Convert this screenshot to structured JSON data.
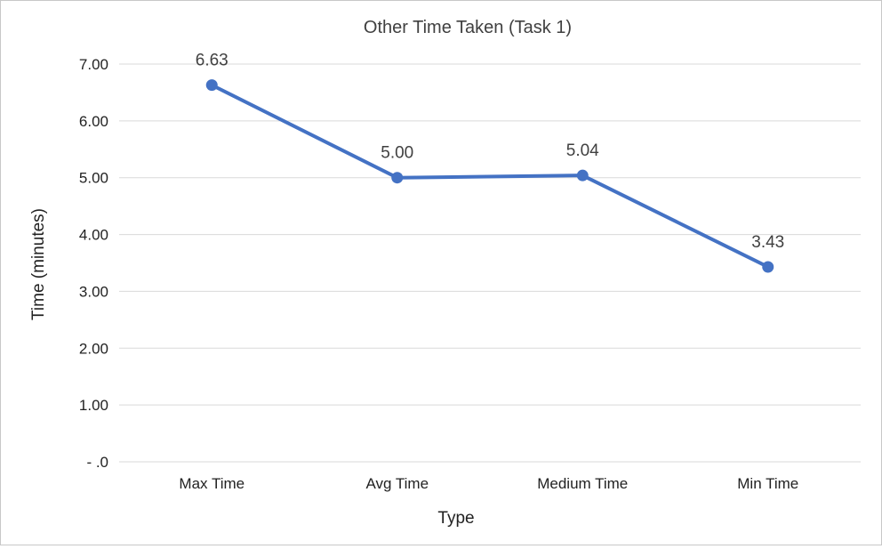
{
  "chart_data": {
    "type": "line",
    "title": "Other Time Taken (Task 1)",
    "xlabel": "Type",
    "ylabel": "Time (minutes)",
    "categories": [
      "Max Time",
      "Avg Time",
      "Medium Time",
      "Min Time"
    ],
    "series": [
      {
        "values": [
          6.63,
          5.0,
          5.04,
          3.43
        ],
        "data_labels": [
          "6.63",
          "5.00",
          "5.04",
          "3.43"
        ],
        "color": "#4472c4"
      }
    ],
    "yticks": [
      0,
      1,
      2,
      3,
      4,
      5,
      6,
      7
    ],
    "ytick_labels": [
      "-  .0",
      "1.00",
      "2.00",
      "3.00",
      "4.00",
      "5.00",
      "6.00",
      "7.00"
    ],
    "ylim": [
      0,
      7
    ],
    "grid": true,
    "legend": "none",
    "gridline_color": "#d9d9d9"
  }
}
